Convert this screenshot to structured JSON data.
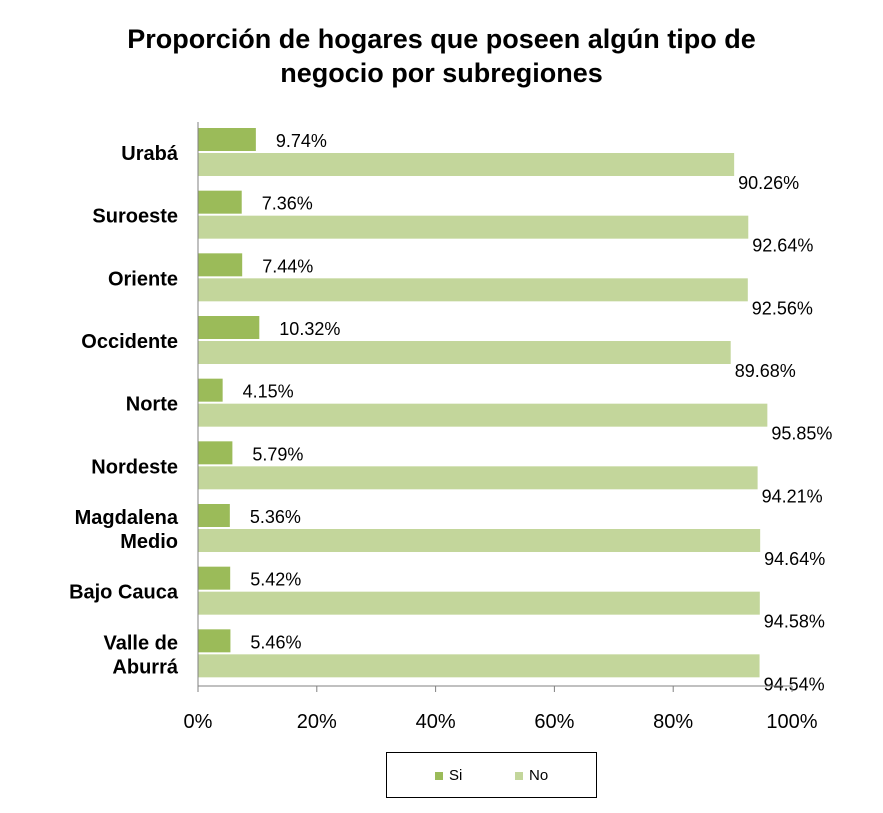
{
  "chart_data": {
    "type": "bar",
    "orientation": "horizontal",
    "title_lines": [
      "Proporción de hogares que poseen algún tipo de",
      "negocio por subregiones"
    ],
    "categories": [
      [
        "Urabá"
      ],
      [
        "Suroeste"
      ],
      [
        "Oriente"
      ],
      [
        "Occidente"
      ],
      [
        "Norte"
      ],
      [
        "Nordeste"
      ],
      [
        "Magdalena",
        "Medio"
      ],
      [
        "Bajo Cauca"
      ],
      [
        "Valle de",
        "Aburrá"
      ]
    ],
    "series": [
      {
        "name": "Si",
        "color": "#9bbb59",
        "values": [
          9.74,
          7.36,
          7.44,
          10.32,
          4.15,
          5.79,
          5.36,
          5.42,
          5.46
        ],
        "labels": [
          "9.74%",
          "7.36%",
          "7.44%",
          "10.32%",
          "4.15%",
          "5.79%",
          "5.36%",
          "5.42%",
          "5.46%"
        ]
      },
      {
        "name": "No",
        "color": "#c3d69b",
        "values": [
          90.26,
          92.64,
          92.56,
          89.68,
          95.85,
          94.21,
          94.64,
          94.58,
          94.54
        ],
        "labels": [
          "90.26%",
          "92.64%",
          "92.56%",
          "89.68%",
          "95.85%",
          "94.21%",
          "94.64%",
          "94.58%",
          "94.54%"
        ]
      }
    ],
    "xticks": [
      "0%",
      "20%",
      "40%",
      "60%",
      "80%",
      "100%"
    ],
    "xlim": [
      0,
      100
    ],
    "grid": false,
    "legend_position": "bottom"
  }
}
